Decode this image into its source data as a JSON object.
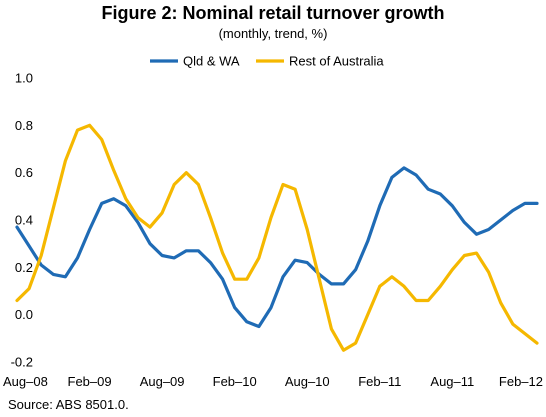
{
  "chart_data": {
    "type": "line",
    "title": "Figure 2:  Nominal retail turnover growth",
    "subtitle": "(monthly, trend, %)",
    "source": "Source:  ABS 8501.0.",
    "xlabel": "",
    "ylabel": "",
    "ylim": [
      -0.2,
      1.0
    ],
    "yticks": [
      -0.2,
      0.0,
      0.2,
      0.4,
      0.6,
      0.8,
      1.0
    ],
    "ytick_labels": [
      "-0.2",
      "0.0",
      "0.2",
      "0.4",
      "0.6",
      "0.8",
      "1.0"
    ],
    "x_tick_labels": [
      "Aug–08",
      "Feb–09",
      "Aug–09",
      "Feb–10",
      "Aug–10",
      "Feb–11",
      "Aug–11",
      "Feb–12"
    ],
    "x_tick_interval_months": 6,
    "grid": false,
    "legend_position": "top",
    "series": [
      {
        "name": "Qld & WA",
        "color": "#1f6bb5",
        "values": [
          0.37,
          0.29,
          0.21,
          0.17,
          0.16,
          0.24,
          0.36,
          0.47,
          0.49,
          0.46,
          0.39,
          0.3,
          0.25,
          0.24,
          0.27,
          0.27,
          0.22,
          0.15,
          0.03,
          -0.03,
          -0.05,
          0.03,
          0.16,
          0.23,
          0.22,
          0.17,
          0.13,
          0.13,
          0.19,
          0.31,
          0.46,
          0.58,
          0.62,
          0.59,
          0.53,
          0.51,
          0.46,
          0.39,
          0.34,
          0.36,
          0.4,
          0.44,
          0.47,
          0.47
        ]
      },
      {
        "name": "Rest of Australia",
        "color": "#f5b800",
        "values": [
          0.06,
          0.11,
          0.25,
          0.45,
          0.65,
          0.78,
          0.8,
          0.74,
          0.61,
          0.49,
          0.41,
          0.37,
          0.43,
          0.55,
          0.6,
          0.55,
          0.41,
          0.26,
          0.15,
          0.15,
          0.24,
          0.41,
          0.55,
          0.53,
          0.36,
          0.15,
          -0.06,
          -0.15,
          -0.12,
          0.0,
          0.12,
          0.16,
          0.12,
          0.06,
          0.06,
          0.12,
          0.19,
          0.25,
          0.26,
          0.18,
          0.05,
          -0.04,
          -0.08,
          -0.12
        ]
      }
    ]
  }
}
